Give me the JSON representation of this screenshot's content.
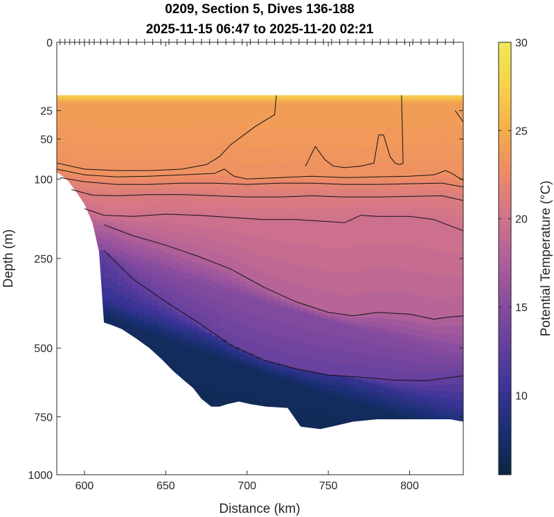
{
  "chart_data": {
    "type": "heatmap",
    "title": [
      "0209, Section 5, Dives 136-188",
      "2025-11-15 06:47 to 2025-11-20 02:21"
    ],
    "xlabel": "Distance (km)",
    "ylabel": "Depth (m)",
    "colorbar_label": "Potential Temperature (°C)",
    "xlim": [
      583,
      833
    ],
    "xticks": [
      600,
      650,
      700,
      750,
      800
    ],
    "ylim": [
      0,
      1000
    ],
    "y_scale": "sqrt",
    "yticks": [
      0,
      25,
      50,
      100,
      250,
      500,
      750,
      1000
    ],
    "clim": [
      5.5,
      30
    ],
    "cticks": [
      10,
      15,
      20,
      25,
      30
    ],
    "colormap": [
      "#0b2640",
      "#1a2f73",
      "#3a3496",
      "#633f9e",
      "#8a4d9e",
      "#b0609a",
      "#d2748a",
      "#ed8b66",
      "#f5ae4a",
      "#f6d24c",
      "#f0ea5a"
    ],
    "surface_gap_depth": 15,
    "dive_marker_x": [
      585,
      588,
      591,
      594,
      597,
      600,
      603,
      606,
      610,
      614,
      618,
      622,
      627,
      632,
      637,
      642,
      647,
      652,
      657,
      662,
      667,
      672,
      677,
      682,
      687,
      692,
      697,
      702,
      707,
      712,
      717,
      722,
      727,
      732,
      737,
      742,
      747,
      752,
      757,
      762,
      767,
      772,
      777,
      782,
      787,
      792,
      797,
      802,
      807,
      812,
      817,
      822,
      827
    ],
    "bathymetry": {
      "x": [
        583,
        586,
        590,
        595,
        600,
        605,
        609,
        612,
        617,
        623,
        632,
        640,
        648,
        655,
        661,
        667,
        672,
        678,
        683,
        688,
        695,
        702,
        712,
        725,
        733,
        745,
        752,
        765,
        780,
        795,
        810,
        825,
        833
      ],
      "depth": [
        90,
        95,
        103,
        120,
        140,
        175,
        235,
        420,
        428,
        440,
        470,
        500,
        540,
        580,
        610,
        640,
        680,
        710,
        710,
        700,
        690,
        700,
        710,
        715,
        790,
        800,
        790,
        770,
        760,
        760,
        760,
        760,
        770
      ]
    },
    "isotherms": [
      {
        "level": 25,
        "x": [
          583,
          600,
          620,
          640,
          660,
          675,
          683,
          690,
          698,
          705,
          712,
          717,
          718
        ],
        "depth": [
          78,
          86,
          88,
          88,
          86,
          80,
          70,
          56,
          46,
          38,
          32,
          28,
          15
        ]
      },
      {
        "level": 25,
        "x": [
          736,
          742,
          748,
          753,
          760,
          770,
          778,
          781,
          784,
          788,
          791,
          794,
          796,
          795
        ],
        "depth": [
          82,
          58,
          74,
          82,
          84,
          82,
          78,
          46,
          46,
          70,
          78,
          80,
          78,
          15
        ]
      },
      {
        "level": 25,
        "x": [
          828,
          833
        ],
        "depth": [
          25,
          34
        ]
      },
      {
        "level": 24,
        "x": [
          583,
          600,
          620,
          640,
          660,
          680,
          686,
          692,
          700,
          720,
          740,
          760,
          780,
          800,
          815,
          822,
          826,
          833
        ],
        "depth": [
          86,
          94,
          97,
          96,
          94,
          92,
          86,
          96,
          100,
          98,
          96,
          98,
          97,
          96,
          94,
          88,
          92,
          102
        ]
      },
      {
        "level": 23,
        "x": [
          585,
          600,
          620,
          640,
          660,
          680,
          700,
          720,
          740,
          760,
          780,
          800,
          820,
          833
        ],
        "depth": [
          98,
          104,
          108,
          108,
          106,
          106,
          108,
          106,
          106,
          108,
          108,
          107,
          106,
          112
        ]
      },
      {
        "level": 22,
        "x": [
          592,
          605,
          620,
          640,
          660,
          680,
          700,
          720,
          740,
          760,
          780,
          800,
          820,
          833
        ],
        "depth": [
          116,
          125,
          126,
          124,
          124,
          126,
          128,
          128,
          126,
          128,
          128,
          127,
          126,
          134
        ]
      },
      {
        "level": 21,
        "x": [
          600,
          612,
          630,
          650,
          670,
          690,
          710,
          730,
          750,
          760,
          770,
          780,
          800,
          815,
          833
        ],
        "depth": [
          148,
          160,
          162,
          158,
          160,
          164,
          168,
          168,
          172,
          174,
          160,
          162,
          162,
          168,
          190
        ]
      },
      {
        "level": 18,
        "x": [
          612,
          630,
          650,
          670,
          690,
          710,
          730,
          750,
          765,
          780,
          800,
          815,
          822,
          833
        ],
        "depth": [
          178,
          200,
          220,
          245,
          275,
          320,
          360,
          390,
          400,
          390,
          395,
          410,
          405,
          400
        ]
      },
      {
        "level": 13,
        "x": [
          612,
          630,
          650,
          670,
          690,
          710,
          730,
          750,
          770,
          790,
          810,
          833
        ],
        "depth": [
          232,
          300,
          360,
          420,
          490,
          540,
          570,
          592,
          600,
          610,
          612,
          595
        ]
      }
    ]
  }
}
